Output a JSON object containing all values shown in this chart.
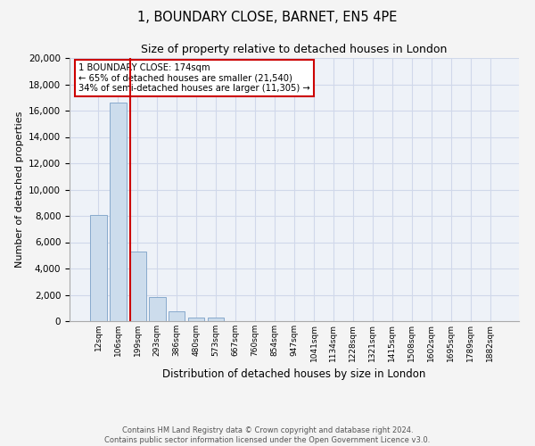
{
  "title_line1": "1, BOUNDARY CLOSE, BARNET, EN5 4PE",
  "title_line2": "Size of property relative to detached houses in London",
  "xlabel": "Distribution of detached houses by size in London",
  "ylabel": "Number of detached properties",
  "categories": [
    "12sqm",
    "106sqm",
    "199sqm",
    "293sqm",
    "386sqm",
    "480sqm",
    "573sqm",
    "667sqm",
    "760sqm",
    "854sqm",
    "947sqm",
    "1041sqm",
    "1134sqm",
    "1228sqm",
    "1321sqm",
    "1415sqm",
    "1508sqm",
    "1602sqm",
    "1695sqm",
    "1789sqm",
    "1882sqm"
  ],
  "values": [
    8100,
    16600,
    5300,
    1850,
    750,
    300,
    250,
    0,
    0,
    0,
    0,
    0,
    0,
    0,
    0,
    0,
    0,
    0,
    0,
    0,
    0
  ],
  "bar_color": "#ccdcec",
  "bar_edge_color": "#88aacc",
  "ylim": [
    0,
    20000
  ],
  "yticks": [
    0,
    2000,
    4000,
    6000,
    8000,
    10000,
    12000,
    14000,
    16000,
    18000,
    20000
  ],
  "property_line_x": 1.62,
  "annotation_title": "1 BOUNDARY CLOSE: 174sqm",
  "annotation_line2": "← 65% of detached houses are smaller (21,540)",
  "annotation_line3": "34% of semi-detached houses are larger (11,305) →",
  "annotation_box_color": "#ffffff",
  "annotation_border_color": "#cc0000",
  "vline_color": "#cc0000",
  "grid_color": "#d0d8ea",
  "background_color": "#eef2f8",
  "fig_background": "#f4f4f4",
  "footer_line1": "Contains HM Land Registry data © Crown copyright and database right 2024.",
  "footer_line2": "Contains public sector information licensed under the Open Government Licence v3.0."
}
